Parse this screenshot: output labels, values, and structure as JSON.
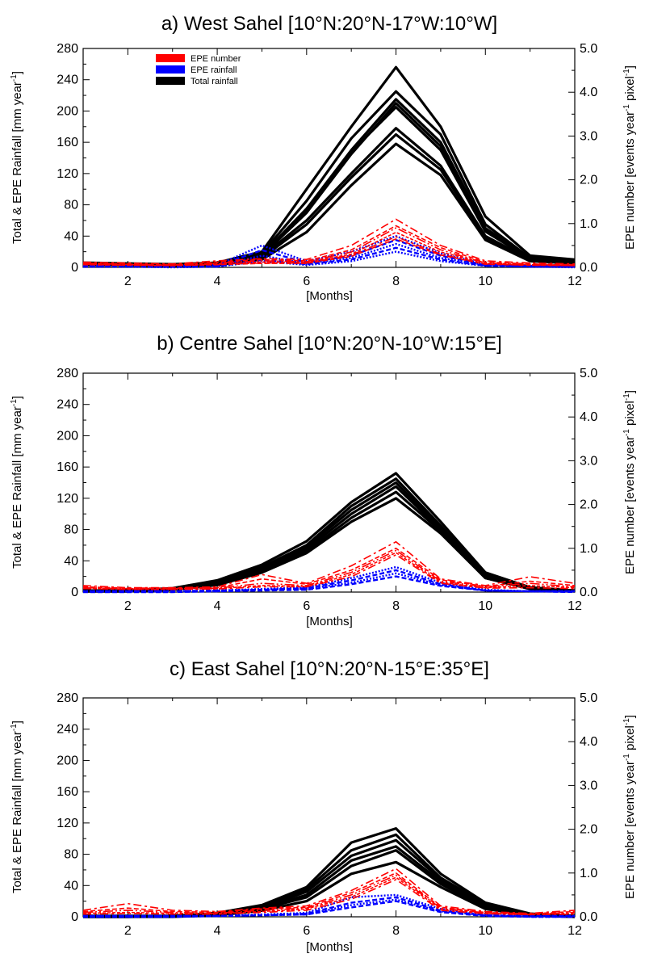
{
  "chart_data": [
    {
      "type": "line",
      "title": "a) West Sahel [10°N:20°N-17°W:10°W]",
      "xlabel": "[Months]",
      "ylabel_left": "Total & EPE Rainfall [mm year",
      "ylabel_left_sup": "-1",
      "ylabel_left_close": "]",
      "ylabel_right_parts": [
        "EPE number [events year",
        "-1",
        " pixel",
        "-1",
        "]"
      ],
      "x_ticks": [
        2,
        4,
        6,
        8,
        10,
        12
      ],
      "y_ticks_left": [
        0,
        40,
        80,
        120,
        160,
        200,
        240,
        280
      ],
      "y_ticks_right": [
        "0.0",
        "1.0",
        "2.0",
        "3.0",
        "4.0",
        "5.0"
      ],
      "xlim": [
        1,
        12
      ],
      "ylim_left": [
        0,
        280
      ],
      "ylim_right": [
        0,
        5
      ],
      "legend": {
        "position": "top-left",
        "entries": [
          {
            "label": "EPE number",
            "color": "#ff0000"
          },
          {
            "label": "EPE rainfall",
            "color": "#0000ff"
          },
          {
            "label": "Total rainfall",
            "color": "#000000"
          }
        ]
      },
      "months": [
        1,
        2,
        3,
        4,
        5,
        6,
        7,
        8,
        9,
        10,
        11,
        12
      ],
      "total_rainfall": [
        [
          6,
          5,
          4,
          6,
          20,
          100,
          180,
          256,
          180,
          65,
          15,
          10
        ],
        [
          5,
          4,
          3,
          5,
          18,
          85,
          165,
          225,
          170,
          55,
          12,
          8
        ],
        [
          5,
          4,
          3,
          5,
          16,
          75,
          150,
          215,
          160,
          50,
          12,
          8
        ],
        [
          4,
          4,
          3,
          4,
          15,
          70,
          145,
          210,
          155,
          48,
          10,
          7
        ],
        [
          5,
          4,
          3,
          5,
          16,
          72,
          148,
          205,
          150,
          46,
          11,
          7
        ],
        [
          4,
          3,
          3,
          4,
          14,
          60,
          120,
          178,
          130,
          40,
          10,
          6
        ],
        [
          4,
          3,
          2,
          4,
          12,
          55,
          115,
          170,
          125,
          38,
          9,
          6
        ],
        [
          3,
          3,
          2,
          3,
          10,
          45,
          105,
          158,
          118,
          35,
          8,
          5
        ]
      ],
      "epe_number": [
        [
          0.12,
          0.1,
          0.08,
          0.15,
          0.2,
          0.18,
          0.5,
          1.1,
          0.5,
          0.15,
          0.1,
          0.08
        ],
        [
          0.1,
          0.08,
          0.06,
          0.12,
          0.18,
          0.15,
          0.4,
          0.95,
          0.45,
          0.12,
          0.08,
          0.06
        ],
        [
          0.09,
          0.07,
          0.06,
          0.1,
          0.15,
          0.13,
          0.35,
          0.9,
          0.4,
          0.1,
          0.07,
          0.05
        ],
        [
          0.08,
          0.06,
          0.05,
          0.08,
          0.12,
          0.12,
          0.3,
          0.8,
          0.35,
          0.1,
          0.06,
          0.05
        ],
        [
          0.07,
          0.05,
          0.04,
          0.07,
          0.1,
          0.1,
          0.28,
          0.7,
          0.3,
          0.08,
          0.05,
          0.04
        ],
        [
          0.06,
          0.05,
          0.04,
          0.06,
          0.09,
          0.09,
          0.25,
          0.65,
          0.28,
          0.07,
          0.05,
          0.04
        ]
      ],
      "epe_rainfall": [
        [
          3,
          2,
          2,
          3,
          28,
          8,
          20,
          40,
          18,
          4,
          2,
          2
        ],
        [
          2,
          2,
          1,
          2,
          22,
          6,
          15,
          35,
          15,
          3,
          2,
          1
        ],
        [
          2,
          1,
          1,
          2,
          15,
          5,
          12,
          30,
          12,
          3,
          1,
          1
        ],
        [
          1,
          1,
          1,
          1,
          10,
          4,
          10,
          25,
          10,
          2,
          1,
          1
        ],
        [
          1,
          1,
          0,
          1,
          8,
          3,
          8,
          20,
          8,
          2,
          1,
          0
        ]
      ]
    },
    {
      "type": "line",
      "title": "b) Centre Sahel [10°N:20°N-10°W:15°E]",
      "xlabel": "[Months]",
      "ylabel_left": "Total & EPE Rainfall [mm year",
      "ylabel_left_sup": "-1",
      "ylabel_left_close": "]",
      "ylabel_right_parts": [
        "EPE number [events year",
        "-1",
        " pixel",
        "-1",
        "]"
      ],
      "x_ticks": [
        2,
        4,
        6,
        8,
        10,
        12
      ],
      "y_ticks_left": [
        0,
        40,
        80,
        120,
        160,
        200,
        240,
        280
      ],
      "y_ticks_right": [
        "0.0",
        "1.0",
        "2.0",
        "3.0",
        "4.0",
        "5.0"
      ],
      "xlim": [
        1,
        12
      ],
      "ylim_left": [
        0,
        280
      ],
      "ylim_right": [
        0,
        5
      ],
      "months": [
        1,
        2,
        3,
        4,
        5,
        6,
        7,
        8,
        9,
        10,
        11,
        12
      ],
      "total_rainfall": [
        [
          2,
          2,
          5,
          15,
          35,
          65,
          115,
          152,
          90,
          25,
          6,
          2
        ],
        [
          2,
          2,
          4,
          13,
          32,
          60,
          110,
          145,
          85,
          22,
          5,
          2
        ],
        [
          1,
          2,
          4,
          12,
          30,
          58,
          105,
          140,
          82,
          20,
          5,
          2
        ],
        [
          1,
          1,
          3,
          10,
          28,
          55,
          100,
          135,
          80,
          20,
          4,
          1
        ],
        [
          1,
          1,
          3,
          10,
          27,
          52,
          95,
          128,
          78,
          18,
          4,
          1
        ],
        [
          1,
          1,
          3,
          9,
          25,
          50,
          90,
          120,
          75,
          18,
          4,
          1
        ]
      ],
      "epe_number": [
        [
          0.15,
          0.1,
          0.1,
          0.12,
          0.4,
          0.2,
          0.6,
          1.15,
          0.3,
          0.15,
          0.35,
          0.2
        ],
        [
          0.12,
          0.09,
          0.09,
          0.1,
          0.3,
          0.18,
          0.5,
          1.0,
          0.28,
          0.13,
          0.25,
          0.15
        ],
        [
          0.1,
          0.08,
          0.08,
          0.09,
          0.2,
          0.15,
          0.45,
          0.95,
          0.25,
          0.12,
          0.2,
          0.12
        ],
        [
          0.09,
          0.07,
          0.07,
          0.08,
          0.15,
          0.13,
          0.4,
          0.9,
          0.22,
          0.1,
          0.15,
          0.1
        ],
        [
          0.08,
          0.06,
          0.06,
          0.07,
          0.12,
          0.12,
          0.35,
          0.85,
          0.2,
          0.09,
          0.1,
          0.08
        ]
      ],
      "epe_rainfall": [
        [
          1,
          1,
          1,
          2,
          4,
          6,
          18,
          32,
          12,
          3,
          1,
          1
        ],
        [
          1,
          1,
          1,
          2,
          3,
          5,
          15,
          28,
          10,
          2,
          1,
          1
        ],
        [
          1,
          1,
          1,
          1,
          3,
          4,
          12,
          24,
          9,
          2,
          1,
          1
        ],
        [
          0,
          0,
          0,
          1,
          2,
          3,
          10,
          20,
          8,
          2,
          1,
          0
        ]
      ]
    },
    {
      "type": "line",
      "title": "c) East Sahel [10°N:20°N-15°E:35°E]",
      "xlabel": "[Months]",
      "ylabel_left": "Total & EPE Rainfall [mm year",
      "ylabel_left_sup": "-1",
      "ylabel_left_close": "]",
      "ylabel_right_parts": [
        "EPE number [events year",
        "-1",
        " pixel",
        "-1",
        "]"
      ],
      "x_ticks": [
        2,
        4,
        6,
        8,
        10,
        12
      ],
      "y_ticks_left": [
        0,
        40,
        80,
        120,
        160,
        200,
        240,
        280
      ],
      "y_ticks_right": [
        "0.0",
        "1.0",
        "2.0",
        "3.0",
        "4.0",
        "5.0"
      ],
      "xlim": [
        1,
        12
      ],
      "ylim_left": [
        0,
        280
      ],
      "ylim_right": [
        0,
        5
      ],
      "months": [
        1,
        2,
        3,
        4,
        5,
        6,
        7,
        8,
        9,
        10,
        11,
        12
      ],
      "total_rainfall": [
        [
          1,
          1,
          1,
          5,
          15,
          38,
          95,
          113,
          55,
          18,
          4,
          1
        ],
        [
          1,
          1,
          1,
          4,
          14,
          35,
          85,
          105,
          50,
          16,
          3,
          1
        ],
        [
          1,
          1,
          1,
          4,
          12,
          32,
          78,
          98,
          48,
          15,
          3,
          1
        ],
        [
          0,
          0,
          1,
          3,
          11,
          28,
          72,
          90,
          45,
          14,
          3,
          1
        ],
        [
          0,
          0,
          1,
          3,
          10,
          25,
          65,
          85,
          42,
          12,
          2,
          0
        ],
        [
          0,
          0,
          0,
          2,
          8,
          20,
          55,
          70,
          38,
          10,
          2,
          0
        ]
      ],
      "epe_number": [
        [
          0.15,
          0.3,
          0.15,
          0.12,
          0.2,
          0.25,
          0.6,
          1.1,
          0.25,
          0.12,
          0.08,
          0.15
        ],
        [
          0.12,
          0.2,
          0.12,
          0.1,
          0.18,
          0.22,
          0.55,
          1.0,
          0.22,
          0.1,
          0.07,
          0.12
        ],
        [
          0.1,
          0.15,
          0.1,
          0.08,
          0.15,
          0.2,
          0.5,
          0.95,
          0.2,
          0.09,
          0.06,
          0.1
        ],
        [
          0.08,
          0.1,
          0.08,
          0.07,
          0.12,
          0.18,
          0.45,
          0.9,
          0.18,
          0.08,
          0.05,
          0.08
        ],
        [
          0.06,
          0.08,
          0.06,
          0.06,
          0.1,
          0.15,
          0.4,
          0.85,
          0.15,
          0.07,
          0.05,
          0.06
        ]
      ],
      "epe_rainfall": [
        [
          1,
          1,
          1,
          1,
          3,
          5,
          25,
          28,
          10,
          2,
          1,
          1
        ],
        [
          1,
          1,
          1,
          1,
          2,
          4,
          18,
          25,
          8,
          2,
          1,
          1
        ],
        [
          0,
          0,
          0,
          1,
          2,
          3,
          15,
          22,
          7,
          2,
          0,
          0
        ],
        [
          0,
          0,
          0,
          1,
          2,
          3,
          12,
          20,
          6,
          1,
          0,
          0
        ]
      ]
    }
  ]
}
